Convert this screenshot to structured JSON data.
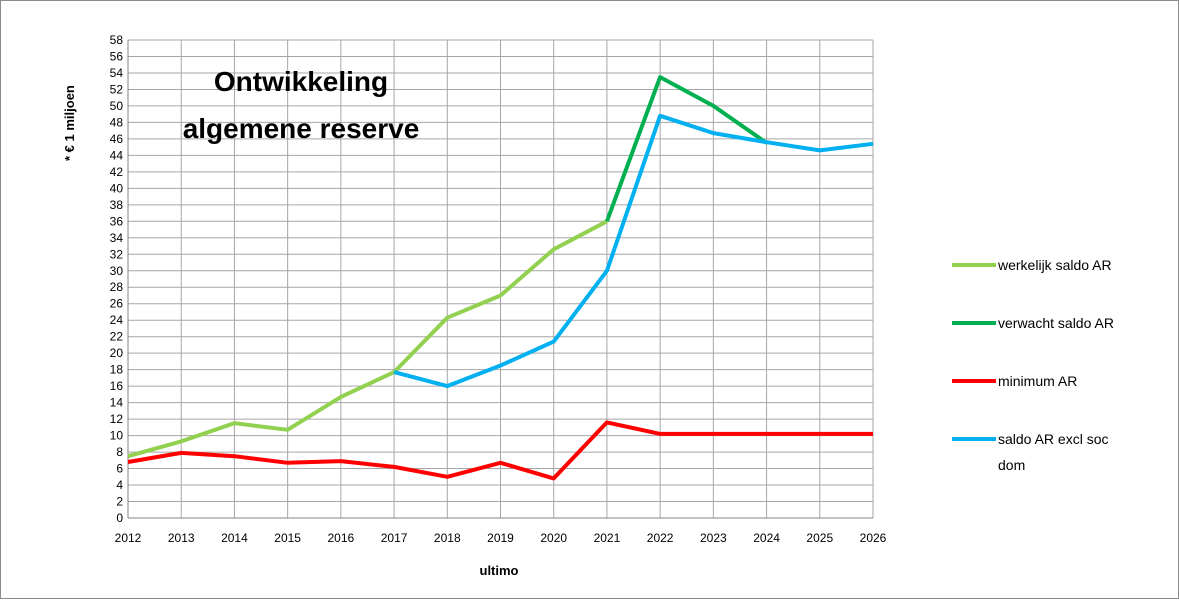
{
  "chart_data": {
    "type": "line",
    "title_lines": [
      "Ontwikkeling",
      "algemene reserve"
    ],
    "xlabel": "ultimo",
    "ylabel": "* € 1 miljoen",
    "ylim": [
      0,
      58
    ],
    "ytick_step": 2,
    "grid": true,
    "legend_position": "right",
    "x": [
      "2012",
      "2013",
      "2014",
      "2015",
      "2016",
      "2017",
      "2018",
      "2019",
      "2020",
      "2021",
      "2022",
      "2023",
      "2024",
      "2025",
      "2026"
    ],
    "series": [
      {
        "name": "werkelijk saldo AR",
        "color": "#92d050",
        "values": [
          7.5,
          9.3,
          11.5,
          10.7,
          14.7,
          17.7,
          24.3,
          27.0,
          32.6,
          36.0,
          null,
          null,
          null,
          null,
          null
        ]
      },
      {
        "name": "verwacht saldo AR",
        "color": "#00b050",
        "values": [
          null,
          null,
          null,
          null,
          null,
          null,
          null,
          null,
          null,
          36.0,
          53.5,
          50.0,
          45.5,
          null,
          null
        ]
      },
      {
        "name": "minimum AR",
        "color": "#ff0000",
        "values": [
          6.8,
          7.9,
          7.5,
          6.7,
          6.9,
          6.2,
          5.0,
          6.7,
          4.8,
          11.6,
          10.2,
          10.2,
          10.2,
          10.2,
          10.2
        ]
      },
      {
        "name": "saldo AR excl soc dom",
        "legend_lines": [
          "saldo AR excl soc",
          "dom"
        ],
        "color": "#00b0f0",
        "values": [
          null,
          null,
          null,
          null,
          null,
          17.7,
          16.0,
          18.5,
          21.4,
          30.0,
          48.8,
          46.7,
          45.6,
          44.6,
          45.4
        ]
      }
    ]
  }
}
